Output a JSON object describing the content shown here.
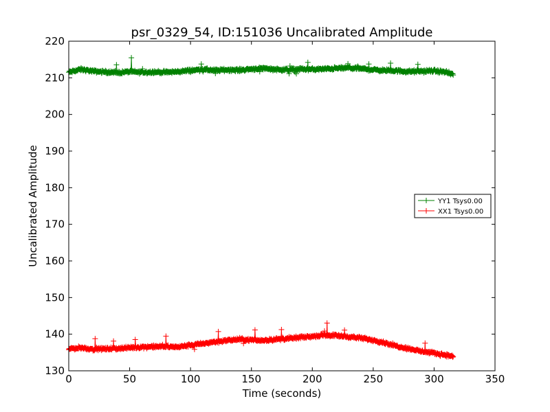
{
  "chart_data": {
    "type": "line",
    "title": "psr_0329_54, ID:151036 Uncalibrated Amplitude",
    "xlabel": "Time (seconds)",
    "ylabel": "Uncalibrated Amplitude",
    "xlim": [
      0,
      350
    ],
    "ylim": [
      130,
      220
    ],
    "xticks": [
      0,
      50,
      100,
      150,
      200,
      250,
      300,
      350
    ],
    "yticks": [
      130,
      140,
      150,
      160,
      170,
      180,
      190,
      200,
      210,
      220
    ],
    "grid": false,
    "legend_position": "center-right",
    "marker": "+",
    "series": [
      {
        "name": "YY1 Tsys0.00",
        "color": "#008000",
        "x": [
          0,
          10,
          20,
          30,
          40,
          50,
          60,
          70,
          80,
          90,
          100,
          110,
          120,
          130,
          140,
          150,
          160,
          170,
          180,
          190,
          200,
          210,
          220,
          230,
          240,
          250,
          260,
          270,
          280,
          290,
          300,
          310,
          316
        ],
        "y": [
          211.5,
          212.3,
          211.8,
          211.6,
          211.4,
          211.7,
          211.5,
          211.6,
          211.5,
          211.7,
          212.0,
          212.3,
          212.0,
          212.2,
          212.1,
          212.4,
          212.6,
          212.3,
          212.2,
          212.4,
          212.3,
          212.4,
          212.6,
          212.7,
          212.5,
          212.2,
          212.0,
          211.9,
          211.7,
          211.8,
          211.9,
          211.5,
          210.8
        ]
      },
      {
        "name": "XX1 Tsys0.00",
        "color": "#ff0000",
        "x": [
          0,
          10,
          20,
          30,
          40,
          50,
          60,
          70,
          80,
          90,
          100,
          110,
          120,
          130,
          140,
          150,
          160,
          170,
          180,
          190,
          200,
          210,
          220,
          230,
          240,
          250,
          260,
          270,
          280,
          290,
          300,
          310,
          316
        ],
        "y": [
          136.0,
          136.3,
          135.9,
          136.0,
          136.1,
          136.3,
          136.5,
          136.6,
          136.6,
          136.5,
          137.0,
          137.4,
          137.9,
          138.3,
          138.6,
          138.4,
          138.3,
          138.6,
          138.8,
          139.1,
          139.4,
          139.8,
          139.6,
          139.3,
          138.9,
          138.4,
          137.6,
          136.7,
          136.0,
          135.3,
          134.8,
          134.3,
          133.9
        ]
      }
    ]
  }
}
